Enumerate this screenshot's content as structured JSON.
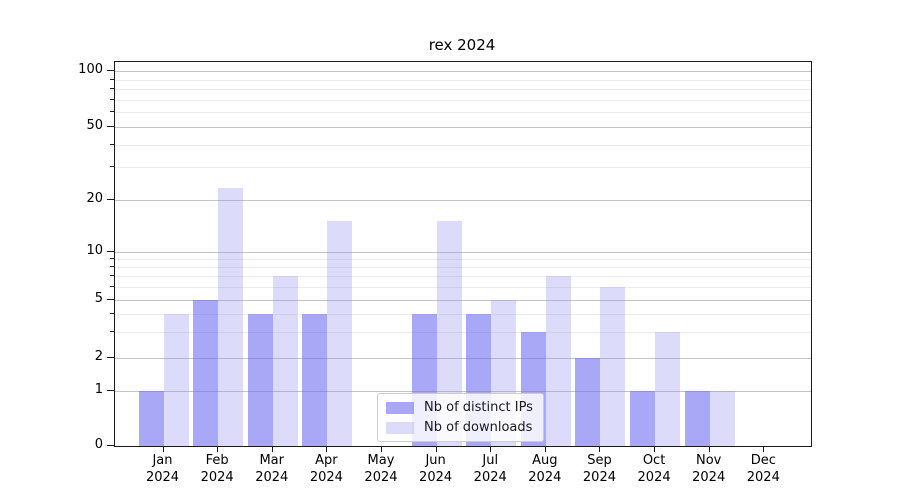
{
  "title": "rex 2024",
  "legend": {
    "items": [
      {
        "label": "Nb of distinct IPs",
        "color": "rgba(110,110,240,0.6)"
      },
      {
        "label": "Nb of downloads",
        "color": "rgba(138,138,238,0.3)"
      }
    ]
  },
  "y_axis": {
    "tick_labels": [
      "100",
      "50",
      "20",
      "10",
      "5",
      "2",
      "1",
      "0"
    ]
  },
  "x_axis": {
    "year": "2024",
    "months": [
      "Jan",
      "Feb",
      "Mar",
      "Apr",
      "May",
      "Jun",
      "Jul",
      "Aug",
      "Sep",
      "Oct",
      "Nov",
      "Dec"
    ]
  },
  "chart_data": {
    "type": "bar",
    "title": "rex 2024",
    "categories": [
      "Jan 2024",
      "Feb 2024",
      "Mar 2024",
      "Apr 2024",
      "May 2024",
      "Jun 2024",
      "Jul 2024",
      "Aug 2024",
      "Sep 2024",
      "Oct 2024",
      "Nov 2024",
      "Dec 2024"
    ],
    "series": [
      {
        "name": "Nb of distinct IPs",
        "color": "rgba(110,110,240,0.6)",
        "values": [
          1,
          5,
          4,
          4,
          0,
          4,
          4,
          3,
          2,
          1,
          1,
          0
        ]
      },
      {
        "name": "Nb of downloads",
        "color": "rgba(138,138,238,0.3)",
        "values": [
          4,
          23,
          7,
          15,
          0,
          15,
          5,
          7,
          6,
          3,
          1,
          0
        ]
      }
    ],
    "xlabel": "",
    "ylabel": "",
    "y_scale": "quasi-log (0,1,2,5,10,20,50,100)",
    "y_ticks_major": [
      0,
      1,
      2,
      5,
      10,
      20,
      50,
      100
    ],
    "y_ticks_minor": [
      3,
      4,
      6,
      7,
      8,
      9,
      30,
      40,
      60,
      70,
      80,
      90
    ],
    "ylim": [
      0,
      110
    ],
    "grid": true,
    "legend_position": "lower center"
  }
}
